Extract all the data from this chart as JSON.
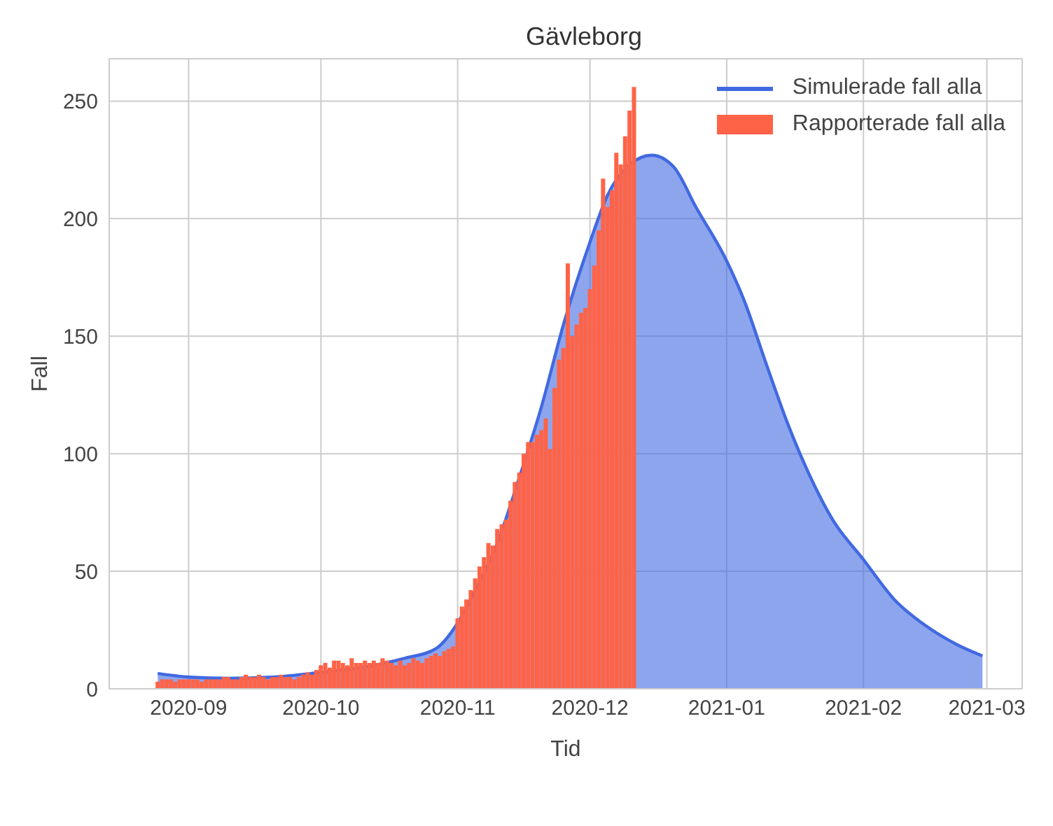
{
  "chart_data": {
    "type": "bar",
    "title": "Gävleborg",
    "xlabel": "Tid",
    "ylabel": "Fall",
    "xlim": [
      "2020-08-14",
      "2021-03-09"
    ],
    "xticks": [
      "2020-09",
      "2020-10",
      "2020-11",
      "2020-12",
      "2021-01",
      "2021-02",
      "2021-03"
    ],
    "ylim": [
      0,
      268
    ],
    "yticks": [
      0,
      50,
      100,
      150,
      200,
      250
    ],
    "grid": true,
    "legend": "top right",
    "series": [
      {
        "name": "Simulerade fall alla",
        "type": "area",
        "color": "#4169e1",
        "x": [
          "2020-08-25",
          "2020-09-01",
          "2020-09-10",
          "2020-09-20",
          "2020-10-01",
          "2020-10-10",
          "2020-10-20",
          "2020-10-27",
          "2020-11-01",
          "2020-11-05",
          "2020-11-10",
          "2020-11-15",
          "2020-11-20",
          "2020-11-25",
          "2020-12-01",
          "2020-12-05",
          "2020-12-10",
          "2020-12-15",
          "2020-12-20",
          "2020-12-25",
          "2021-01-01",
          "2021-01-05",
          "2021-01-10",
          "2021-01-15",
          "2021-01-20",
          "2021-01-25",
          "2021-02-01",
          "2021-02-08",
          "2021-02-15",
          "2021-02-22",
          "2021-02-28"
        ],
        "values": [
          6.5,
          5,
          4.5,
          5,
          7,
          9,
          13,
          17,
          28,
          42,
          62,
          90,
          120,
          155,
          190,
          210,
          223,
          227,
          222,
          205,
          182,
          165,
          138,
          112,
          90,
          72,
          55,
          38,
          27,
          19,
          14
        ]
      },
      {
        "name": "Rapporterade fall alla",
        "color": "#ff6347",
        "x": [
          "2020-08-25",
          "2020-08-26",
          "2020-08-27",
          "2020-08-28",
          "2020-08-29",
          "2020-08-30",
          "2020-08-31",
          "2020-09-01",
          "2020-09-02",
          "2020-09-03",
          "2020-09-04",
          "2020-09-05",
          "2020-09-06",
          "2020-09-07",
          "2020-09-08",
          "2020-09-09",
          "2020-09-10",
          "2020-09-11",
          "2020-09-12",
          "2020-09-13",
          "2020-09-14",
          "2020-09-15",
          "2020-09-16",
          "2020-09-17",
          "2020-09-18",
          "2020-09-19",
          "2020-09-20",
          "2020-09-21",
          "2020-09-22",
          "2020-09-23",
          "2020-09-24",
          "2020-09-25",
          "2020-09-26",
          "2020-09-27",
          "2020-09-28",
          "2020-09-29",
          "2020-09-30",
          "2020-10-01",
          "2020-10-02",
          "2020-10-03",
          "2020-10-04",
          "2020-10-05",
          "2020-10-06",
          "2020-10-07",
          "2020-10-08",
          "2020-10-09",
          "2020-10-10",
          "2020-10-11",
          "2020-10-12",
          "2020-10-13",
          "2020-10-14",
          "2020-10-15",
          "2020-10-16",
          "2020-10-17",
          "2020-10-18",
          "2020-10-19",
          "2020-10-20",
          "2020-10-21",
          "2020-10-22",
          "2020-10-23",
          "2020-10-24",
          "2020-10-25",
          "2020-10-26",
          "2020-10-27",
          "2020-10-28",
          "2020-10-29",
          "2020-10-30",
          "2020-10-31",
          "2020-11-01",
          "2020-11-02",
          "2020-11-03",
          "2020-11-04",
          "2020-11-05",
          "2020-11-06",
          "2020-11-07",
          "2020-11-08",
          "2020-11-09",
          "2020-11-10",
          "2020-11-11",
          "2020-11-12",
          "2020-11-13",
          "2020-11-14",
          "2020-11-15",
          "2020-11-16",
          "2020-11-17",
          "2020-11-18",
          "2020-11-19",
          "2020-11-20",
          "2020-11-21",
          "2020-11-22",
          "2020-11-23",
          "2020-11-24",
          "2020-11-25",
          "2020-11-26",
          "2020-11-27",
          "2020-11-28",
          "2020-11-29",
          "2020-11-30",
          "2020-12-01",
          "2020-12-02",
          "2020-12-03",
          "2020-12-04",
          "2020-12-05",
          "2020-12-06",
          "2020-12-07",
          "2020-12-08",
          "2020-12-09",
          "2020-12-10",
          "2020-12-11"
        ],
        "values": [
          3,
          4,
          4,
          4,
          3,
          4,
          4,
          4,
          4,
          4,
          3,
          4,
          4,
          4,
          4,
          5,
          5,
          4,
          4,
          5,
          6,
          5,
          5,
          6,
          5,
          4,
          5,
          5,
          6,
          5,
          5,
          4,
          5,
          6,
          7,
          6,
          8,
          10,
          11,
          9,
          12,
          12,
          11,
          10,
          13,
          11,
          11,
          12,
          11,
          12,
          11,
          13,
          12,
          11,
          10,
          12,
          10,
          11,
          13,
          12,
          11,
          13,
          14,
          15,
          14,
          16,
          17,
          18,
          30,
          35,
          38,
          42,
          47,
          52,
          56,
          62,
          61,
          68,
          70,
          72,
          80,
          88,
          92,
          100,
          105,
          105,
          108,
          110,
          115,
          102,
          128,
          140,
          145,
          181,
          150,
          155,
          160,
          162,
          170,
          180,
          195,
          217,
          205,
          212,
          228,
          223,
          235,
          246,
          256
        ]
      }
    ]
  }
}
